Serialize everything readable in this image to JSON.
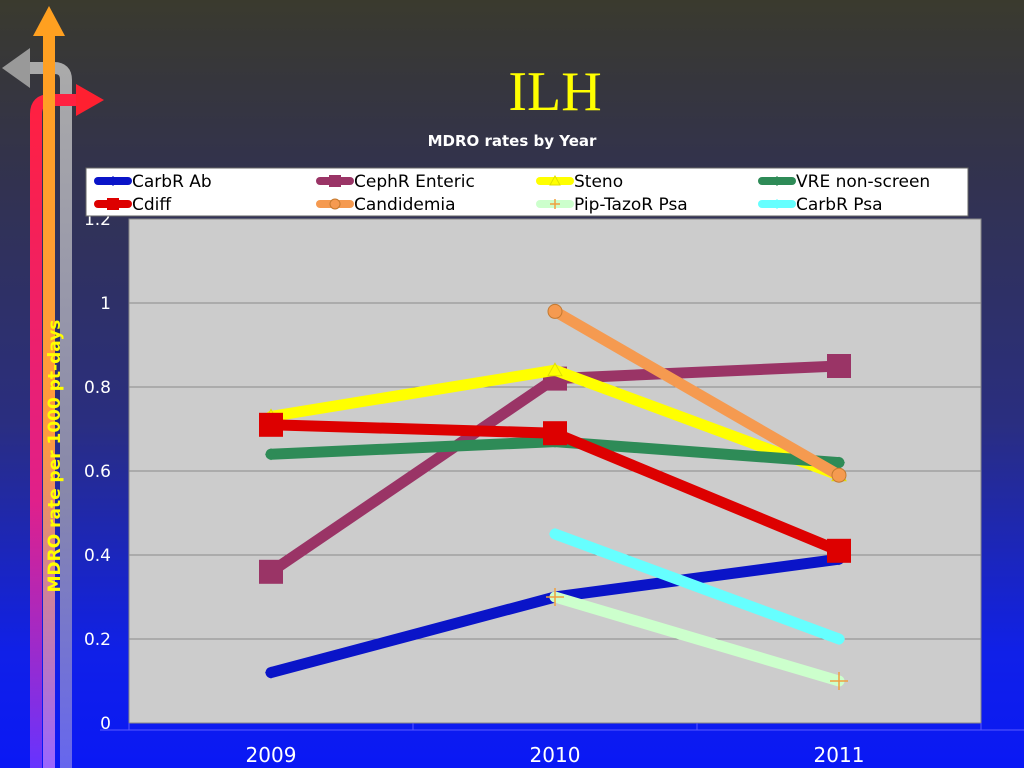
{
  "slide": {
    "title": "ILH"
  },
  "colors": {
    "accent_title": "#ffff00",
    "plot_background": "#cccccc"
  },
  "chart_data": {
    "type": "line",
    "title": "MDRO rates by Year",
    "xlabel": "",
    "ylabel": "MDRO rate per 1000 pt-days",
    "categories": [
      "2009",
      "2010",
      "2011"
    ],
    "ylim": [
      0,
      1.2
    ],
    "yticks": [
      "0",
      "0.2",
      "0.4",
      "0.6",
      "0.8",
      "1",
      "1.2"
    ],
    "grid": true,
    "legend_position": "top",
    "series": [
      {
        "name": "CarbR Ab",
        "color": "#0a14c8",
        "marker": "diamond",
        "values": [
          0.12,
          0.3,
          0.39
        ]
      },
      {
        "name": "CephR Enteric",
        "color": "#9a3466",
        "marker": "square",
        "values": [
          0.36,
          0.82,
          0.85
        ]
      },
      {
        "name": "Steno",
        "color": "#ffff00",
        "marker": "triangle",
        "values": [
          0.73,
          0.84,
          0.59
        ]
      },
      {
        "name": "VRE non-screen",
        "color": "#2e8b57",
        "marker": "diamond",
        "values": [
          0.64,
          0.67,
          0.62
        ]
      },
      {
        "name": "Cdiff",
        "color": "#dd0000",
        "marker": "square",
        "values": [
          0.71,
          0.69,
          0.41
        ]
      },
      {
        "name": "Candidemia",
        "color": "#f59a50",
        "marker": "circle",
        "values": [
          null,
          0.98,
          0.59
        ]
      },
      {
        "name": "Pip-TazoR Psa",
        "color": "#ccffcc",
        "marker": "plus",
        "values": [
          null,
          0.3,
          0.1
        ]
      },
      {
        "name": "CarbR Psa",
        "color": "#66ffff",
        "marker": "diamond",
        "values": [
          null,
          0.45,
          0.2
        ]
      }
    ]
  }
}
